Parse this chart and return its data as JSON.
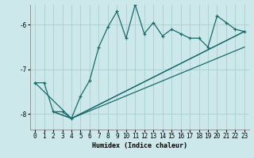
{
  "xlabel": "Humidex (Indice chaleur)",
  "bg_color": "#cce8ea",
  "grid_color": "#aacfcf",
  "line_color": "#1a6b6b",
  "xlim": [
    -0.5,
    23.5
  ],
  "ylim": [
    -8.35,
    -5.55
  ],
  "yticks": [
    -8,
    -7,
    -6
  ],
  "xticks": [
    0,
    1,
    2,
    3,
    4,
    5,
    6,
    7,
    8,
    9,
    10,
    11,
    12,
    13,
    14,
    15,
    16,
    17,
    18,
    19,
    20,
    21,
    22,
    23
  ],
  "main_line_x": [
    0,
    1,
    2,
    3,
    4,
    5,
    6,
    7,
    8,
    9,
    10,
    11,
    12,
    13,
    14,
    15,
    16,
    17,
    18,
    19,
    20,
    21,
    22,
    23
  ],
  "main_line_y": [
    -7.3,
    -7.3,
    -7.95,
    -7.95,
    -8.1,
    -7.6,
    -7.25,
    -6.5,
    -6.05,
    -5.7,
    -6.3,
    -5.55,
    -6.2,
    -5.95,
    -6.25,
    -6.1,
    -6.2,
    -6.3,
    -6.3,
    -6.5,
    -5.8,
    -5.95,
    -6.1,
    -6.15
  ],
  "line2_x": [
    0,
    4,
    23
  ],
  "line2_y": [
    -7.3,
    -8.1,
    -6.15
  ],
  "line3_x": [
    2,
    4,
    23
  ],
  "line3_y": [
    -7.95,
    -8.1,
    -6.15
  ],
  "line4_x": [
    2,
    4,
    23
  ],
  "line4_y": [
    -7.95,
    -8.1,
    -6.5
  ]
}
